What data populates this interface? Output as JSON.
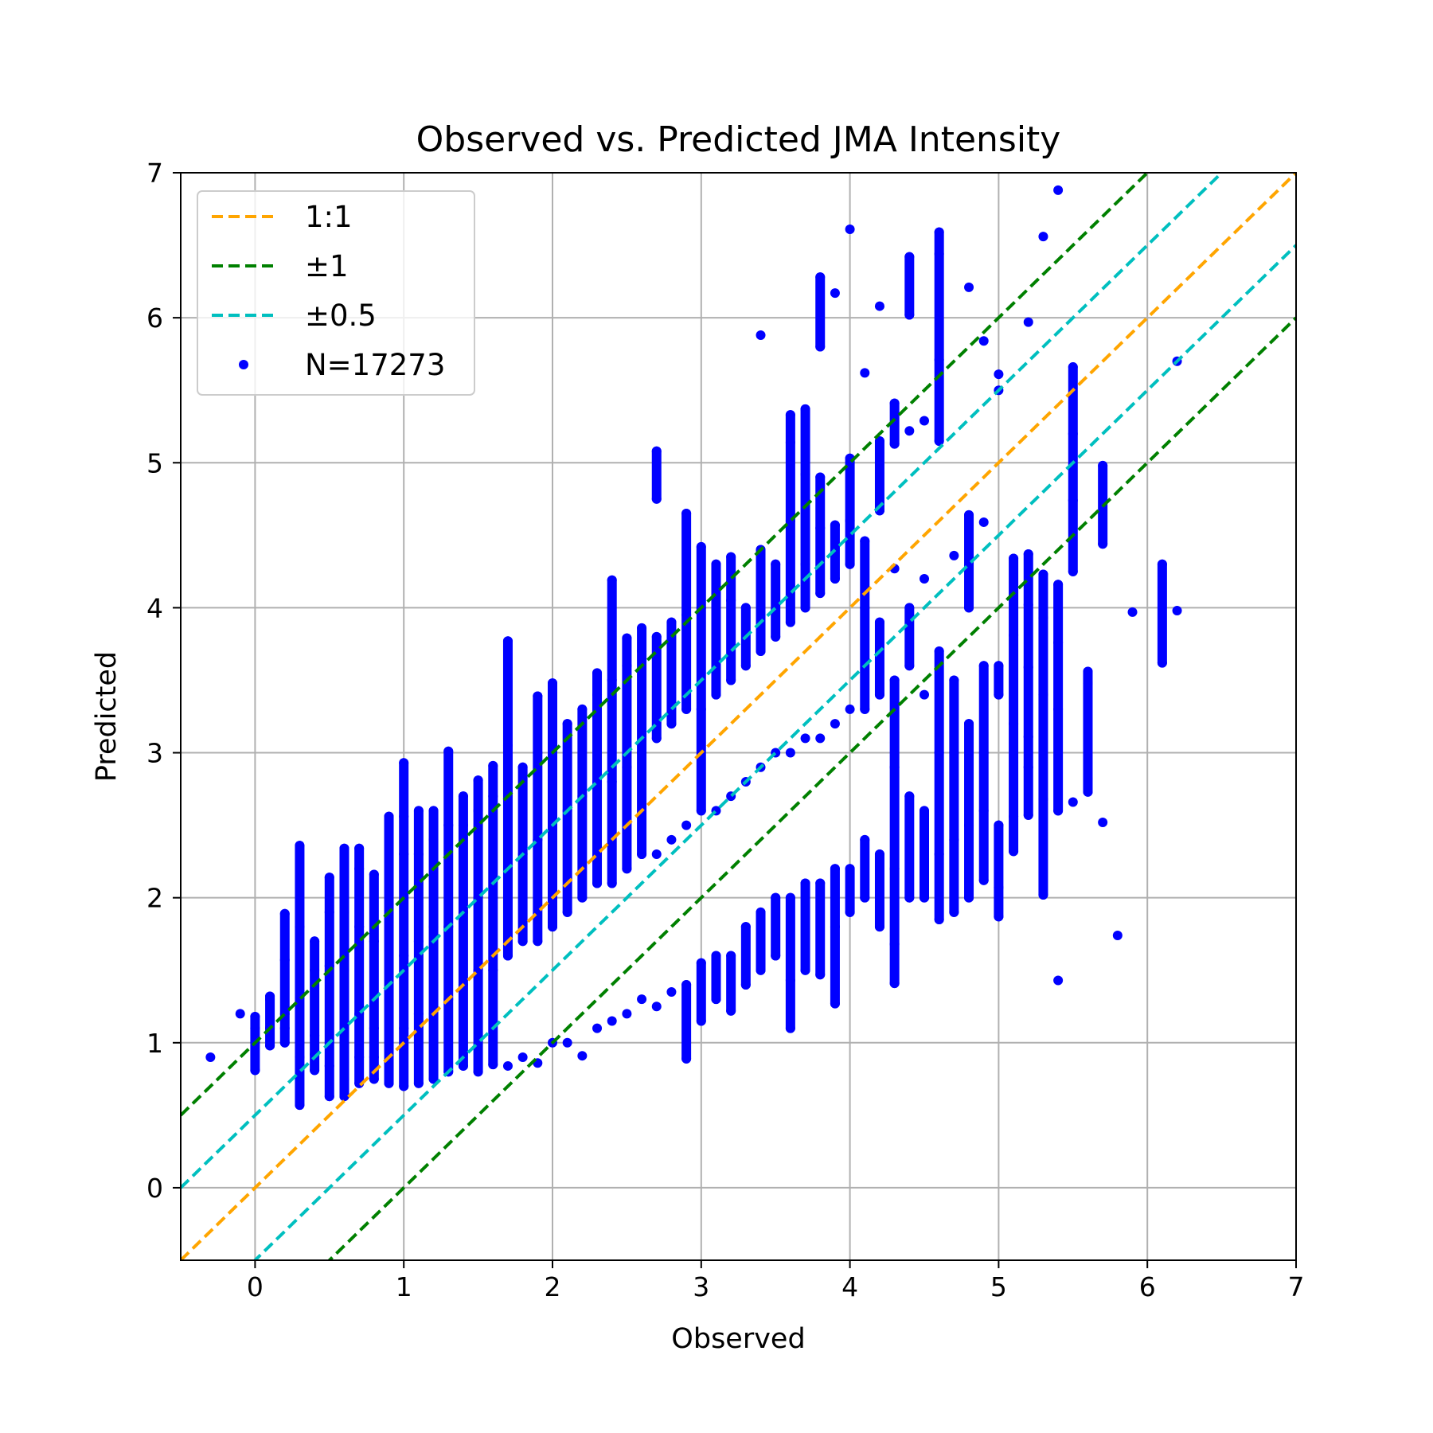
{
  "chart_data": {
    "type": "scatter",
    "title": "Observed vs. Predicted JMA Intensity",
    "xlabel": "Observed",
    "ylabel": "Predicted",
    "xlim": [
      -0.5,
      7
    ],
    "ylim": [
      -0.5,
      7
    ],
    "xticks": [
      "0",
      "1",
      "2",
      "3",
      "4",
      "5",
      "6",
      "7"
    ],
    "yticks": [
      "0",
      "1",
      "2",
      "3",
      "4",
      "5",
      "6",
      "7"
    ],
    "grid": true,
    "legend_position": "top-left",
    "reference_lines": [
      {
        "name": "1:1",
        "offset": 0,
        "color": "#ffa500"
      },
      {
        "name": "±1",
        "offsets": [
          1,
          -1
        ],
        "color": "#008000"
      },
      {
        "name": "±0.5",
        "offsets": [
          0.5,
          -0.5
        ],
        "color": "#00bfbf"
      }
    ],
    "series": [
      {
        "name": "N=17273",
        "color": "#0000ff",
        "x_step": 0.1,
        "columns": [
          {
            "x": -0.3,
            "y": [
              0.9
            ]
          },
          {
            "x": -0.1,
            "y": [
              1.2
            ]
          },
          {
            "x": 0.0,
            "y": [
              0.81,
              1.0,
              1.1,
              1.18
            ]
          },
          {
            "x": 0.1,
            "y": [
              0.98,
              1.1,
              1.3,
              1.32
            ]
          },
          {
            "x": 0.2,
            "y": [
              1.0,
              1.1,
              1.2,
              1.57,
              1.89
            ]
          },
          {
            "x": 0.3,
            "y": [
              0.57,
              0.9,
              1.0,
              1.31,
              1.8,
              2.36
            ]
          },
          {
            "x": 0.4,
            "y": [
              0.81,
              0.92,
              1.05,
              1.5,
              1.7
            ]
          },
          {
            "x": 0.5,
            "y": [
              0.63,
              0.84,
              1.0,
              1.53,
              1.9,
              2.14
            ]
          },
          {
            "x": 0.6,
            "y": [
              0.63,
              0.75,
              1.0,
              1.5,
              1.9,
              2.34
            ]
          },
          {
            "x": 0.7,
            "y": [
              0.72,
              0.9,
              1.2,
              1.8,
              2.2,
              2.34
            ]
          },
          {
            "x": 0.8,
            "y": [
              0.75,
              0.9,
              1.1,
              1.7,
              2.16
            ]
          },
          {
            "x": 0.9,
            "y": [
              0.72,
              1.0,
              1.3,
              1.9,
              2.56
            ]
          },
          {
            "x": 1.0,
            "y": [
              0.7,
              1.1,
              1.6,
              2.3,
              2.56,
              2.93
            ]
          },
          {
            "x": 1.1,
            "y": [
              0.72,
              1.2,
              1.7,
              2.3,
              2.6
            ]
          },
          {
            "x": 1.2,
            "y": [
              0.75,
              1.2,
              1.8,
              2.4,
              2.6
            ]
          },
          {
            "x": 1.3,
            "y": [
              0.8,
              1.3,
              1.8,
              2.5,
              3.01
            ]
          },
          {
            "x": 1.4,
            "y": [
              0.84,
              1.4,
              1.9,
              2.5,
              2.7
            ]
          },
          {
            "x": 1.5,
            "y": [
              0.8,
              1.5,
              2.0,
              2.6,
              2.81
            ]
          },
          {
            "x": 1.6,
            "y": [
              0.85,
              1.5,
              2.0,
              2.7,
              2.91
            ]
          },
          {
            "x": 1.7,
            "y": [
              0.84,
              1.6,
              2.2,
              2.8,
              3.05,
              3.77
            ]
          },
          {
            "x": 1.8,
            "y": [
              0.9,
              1.7,
              2.3,
              2.9
            ]
          },
          {
            "x": 1.9,
            "y": [
              0.86,
              1.7,
              2.4,
              3.0,
              3.39
            ]
          },
          {
            "x": 2.0,
            "y": [
              1.0,
              1.8,
              2.5,
              3.1,
              3.48
            ]
          },
          {
            "x": 2.1,
            "y": [
              1.0,
              1.9,
              2.6,
              3.2
            ]
          },
          {
            "x": 2.2,
            "y": [
              0.91,
              2.0,
              2.7,
              3.3
            ]
          },
          {
            "x": 2.3,
            "y": [
              1.1,
              2.1,
              2.8,
              3.4,
              3.55
            ]
          },
          {
            "x": 2.4,
            "y": [
              1.15,
              2.1,
              2.8,
              3.5,
              4.19
            ]
          },
          {
            "x": 2.5,
            "y": [
              1.2,
              2.2,
              2.9,
              3.6,
              3.79
            ]
          },
          {
            "x": 2.6,
            "y": [
              1.3,
              2.3,
              3.0,
              3.7,
              3.86
            ]
          },
          {
            "x": 2.7,
            "y": [
              1.25,
              2.3,
              3.1,
              3.8,
              4.75,
              5.08
            ]
          },
          {
            "x": 2.8,
            "y": [
              1.35,
              2.4,
              3.2,
              3.9
            ]
          },
          {
            "x": 2.9,
            "y": [
              0.89,
              1.4,
              2.5,
              3.3,
              3.95,
              4.65
            ]
          },
          {
            "x": 3.0,
            "y": [
              1.15,
              1.55,
              2.6,
              3.3,
              4.0,
              4.42
            ]
          },
          {
            "x": 3.1,
            "y": [
              1.3,
              1.6,
              2.6,
              3.4,
              4.1,
              4.3
            ]
          },
          {
            "x": 3.2,
            "y": [
              1.22,
              1.6,
              2.7,
              3.5,
              4.05,
              4.35
            ]
          },
          {
            "x": 3.3,
            "y": [
              1.4,
              1.8,
              2.8,
              3.6,
              4.0
            ]
          },
          {
            "x": 3.4,
            "y": [
              1.5,
              1.9,
              2.9,
              3.7,
              4.4,
              5.88
            ]
          },
          {
            "x": 3.5,
            "y": [
              1.6,
              2.0,
              3.0,
              3.8,
              4.3
            ]
          },
          {
            "x": 3.6,
            "y": [
              1.1,
              1.43,
              2.0,
              3.0,
              3.9,
              4.6,
              5.14,
              5.33
            ]
          },
          {
            "x": 3.7,
            "y": [
              1.5,
              2.1,
              3.1,
              4.0,
              4.3,
              4.92,
              5.37
            ]
          },
          {
            "x": 3.8,
            "y": [
              1.47,
              2.1,
              3.1,
              4.1,
              4.55,
              4.9,
              5.8,
              6.28
            ]
          },
          {
            "x": 3.9,
            "y": [
              1.27,
              1.8,
              2.2,
              3.2,
              4.2,
              4.57,
              6.17
            ]
          },
          {
            "x": 4.0,
            "y": [
              1.9,
              2.2,
              3.3,
              4.3,
              4.6,
              5.03,
              6.61
            ]
          },
          {
            "x": 4.1,
            "y": [
              2.0,
              2.4,
              3.3,
              4.0,
              4.46,
              5.62
            ]
          },
          {
            "x": 4.2,
            "y": [
              1.8,
              2.3,
              3.4,
              3.9,
              4.67,
              5.15,
              6.08
            ]
          },
          {
            "x": 4.3,
            "y": [
              1.41,
              1.68,
              2.2,
              2.9,
              3.5,
              4.27,
              5.13,
              5.41
            ]
          },
          {
            "x": 4.4,
            "y": [
              2.0,
              2.7,
              3.6,
              4.0,
              5.22,
              6.02,
              6.42
            ]
          },
          {
            "x": 4.5,
            "y": [
              2.0,
              2.6,
              3.4,
              4.2,
              5.29
            ]
          },
          {
            "x": 4.6,
            "y": [
              1.85,
              2.3,
              3.0,
              3.7,
              5.15,
              5.71,
              6.44,
              6.59
            ]
          },
          {
            "x": 4.7,
            "y": [
              1.9,
              2.4,
              3.0,
              3.5,
              4.36
            ]
          },
          {
            "x": 4.8,
            "y": [
              2.0,
              2.5,
              3.2,
              4.0,
              4.64,
              6.21
            ]
          },
          {
            "x": 4.9,
            "y": [
              2.12,
              2.6,
              3.0,
              3.6,
              4.59,
              5.84
            ]
          },
          {
            "x": 5.0,
            "y": [
              1.87,
              2.07,
              2.5,
              3.4,
              3.6,
              5.5,
              5.61
            ]
          },
          {
            "x": 5.1,
            "y": [
              2.32,
              2.56,
              3.2,
              3.81,
              4.34
            ]
          },
          {
            "x": 5.2,
            "y": [
              2.57,
              2.9,
              3.11,
              3.59,
              4.02,
              4.37,
              5.97
            ]
          },
          {
            "x": 5.3,
            "y": [
              2.02,
              2.68,
              3.4,
              3.93,
              4.23,
              6.56
            ]
          },
          {
            "x": 5.4,
            "y": [
              1.43,
              2.6,
              3.3,
              3.76,
              4.16,
              6.88
            ]
          },
          {
            "x": 5.5,
            "y": [
              2.66,
              4.25,
              4.74,
              5.2,
              5.66
            ]
          },
          {
            "x": 5.6,
            "y": [
              2.73,
              2.82,
              3.48,
              3.56
            ]
          },
          {
            "x": 5.7,
            "y": [
              2.52,
              4.44,
              4.98
            ]
          },
          {
            "x": 5.8,
            "y": [
              1.74
            ]
          },
          {
            "x": 5.9,
            "y": [
              3.97
            ]
          },
          {
            "x": 6.1,
            "y": [
              3.62,
              4.3
            ]
          },
          {
            "x": 6.2,
            "y": [
              3.98,
              5.7
            ]
          }
        ]
      }
    ]
  }
}
